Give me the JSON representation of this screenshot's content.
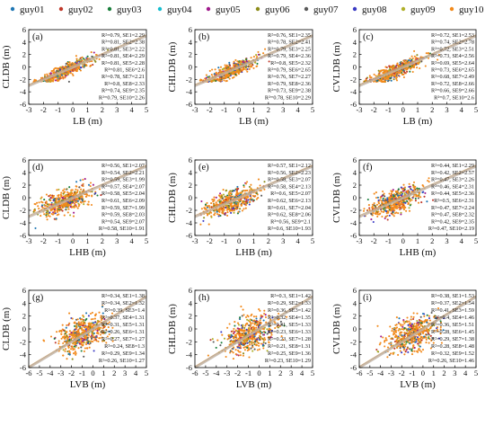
{
  "legend": [
    {
      "name": "guy01",
      "color": "#1f77b4"
    },
    {
      "name": "guy02",
      "color": "#c0392b"
    },
    {
      "name": "guy03",
      "color": "#1a7f3c"
    },
    {
      "name": "guy04",
      "color": "#17becf"
    },
    {
      "name": "guy05",
      "color": "#a01a8c"
    },
    {
      "name": "guy06",
      "color": "#8c8c1a"
    },
    {
      "name": "guy07",
      "color": "#5a5a5a"
    },
    {
      "name": "guy08",
      "color": "#3b3bc4"
    },
    {
      "name": "guy09",
      "color": "#b0b02a"
    },
    {
      "name": "guy10",
      "color": "#f28a1c"
    }
  ],
  "chart_data": [
    {
      "type": "scatter",
      "panel": "(a)",
      "xlabel": "LB (m)",
      "ylabel": "CLDB (m)",
      "xlim": [
        -3,
        5
      ],
      "ylim": [
        -6,
        6
      ],
      "xticks": [
        -3,
        -2,
        -1,
        0,
        1,
        2,
        3,
        4,
        5
      ],
      "yticks": [
        -6,
        -4,
        -2,
        0,
        2,
        4,
        6
      ],
      "stats": [
        "R²=0.79, SE1=2.29",
        "R²=0.81, SE2=2.38",
        "R²=0.81, SE3=2.22",
        "R²=0.81, SE4=2.29",
        "R²=0.81, SE5=2.28",
        "R²=0.81, SE6=2.6",
        "R²=0.78, SE7=2.21",
        "R²=0.8, SE8=2.33",
        "R²=0.74, SE9=2.35",
        "R²=0.79, SE10=2.26"
      ]
    },
    {
      "type": "scatter",
      "panel": "(b)",
      "xlabel": "LB (m)",
      "ylabel": "CHLDB (m)",
      "xlim": [
        -3,
        5
      ],
      "ylim": [
        -6,
        6
      ],
      "xticks": [
        -3,
        -2,
        -1,
        0,
        1,
        2,
        3,
        4,
        5
      ],
      "yticks": [
        -6,
        -4,
        -2,
        0,
        2,
        4,
        6
      ],
      "stats": [
        "R²=0.76, SE1=2.35",
        "R²=0.78, SE2=2.41",
        "R²=0.79, SE3=2.25",
        "R²=0.79, SE4=2.36",
        "R²=0.8, SE5=2.32",
        "R²=0.79, SE6=2.65",
        "R²=0.76, SE7=2.27",
        "R²=0.79, SE8=2.36",
        "R²=0.73, SE9=2.38",
        "R²=0.78, SE10=2.29"
      ]
    },
    {
      "type": "scatter",
      "panel": "(c)",
      "xlabel": "LB (m)",
      "ylabel": "CVLDB (m)",
      "xlim": [
        -3,
        5
      ],
      "ylim": [
        -6,
        6
      ],
      "xticks": [
        -3,
        -2,
        -1,
        0,
        1,
        2,
        3,
        4,
        5
      ],
      "yticks": [
        -6,
        -4,
        -2,
        0,
        2,
        4,
        6
      ],
      "stats": [
        "R²=0.72, SE1=2.53",
        "R²=0.74, SE2=2.78",
        "R²=0.72, SE3=2.51",
        "R²=0.73, SE4=2.56",
        "R²=0.69, SE5=2.64",
        "R²=0.73, SE6=2.65",
        "R²=0.68, SE7=2.49",
        "R²=0.72, SE8=2.66",
        "R²=0.66, SE9=2.66",
        "R²=0.7, SE10=2.6"
      ]
    },
    {
      "type": "scatter",
      "panel": "(d)",
      "xlabel": "LHB (m)",
      "ylabel": "CLDB (m)",
      "xlim": [
        -3,
        5
      ],
      "ylim": [
        -6,
        6
      ],
      "xticks": [
        -3,
        -2,
        -1,
        0,
        1,
        2,
        3,
        4,
        5
      ],
      "yticks": [
        -6,
        -4,
        -2,
        0,
        2,
        4,
        6
      ],
      "stats": [
        "R²=0.56, SE1=2.07",
        "R²=0.54, SE2=2.21",
        "R²=0.59, SE3=1.99",
        "R²=0.57, SE4=2.07",
        "R²=0.58, SE5=2.04",
        "R²=0.61, SE6=2.09",
        "R²=0.59, SE7=1.99",
        "R²=0.59, SE8=2.03",
        "R²=0.54, SE9=2.07",
        "R²=0.58, SE10=1.91"
      ]
    },
    {
      "type": "scatter",
      "panel": "(e)",
      "xlabel": "LHB (m)",
      "ylabel": "CHLDB (m)",
      "xlim": [
        -3,
        5
      ],
      "ylim": [
        -6,
        6
      ],
      "xticks": [
        -3,
        -2,
        -1,
        0,
        1,
        2,
        3,
        4,
        5
      ],
      "yticks": [
        -6,
        -4,
        -2,
        0,
        2,
        4,
        6
      ],
      "stats": [
        "R²=0.57, SE1=2.12",
        "R²=0.56, SE2=2.23",
        "R²=0.58, SE3=2.07",
        "R²=0.58, SE4=2.13",
        "R²=0.6, SE5=2.07",
        "R²=0.62, SE6=2.13",
        "R²=0.61, SE7=2.04",
        "R²=0.62, SE8=2.06",
        "R²=0.56, SE9=2.1",
        "R²=0.6, SE10=1.93"
      ]
    },
    {
      "type": "scatter",
      "panel": "(f)",
      "xlabel": "LHB (m)",
      "ylabel": "CVLDB (m)",
      "xlim": [
        -3,
        5
      ],
      "ylim": [
        -6,
        6
      ],
      "xticks": [
        -3,
        -2,
        -1,
        0,
        1,
        2,
        3,
        4,
        5
      ],
      "yticks": [
        -6,
        -4,
        -2,
        0,
        2,
        4,
        6
      ],
      "stats": [
        "R²=0.44, SE1=2.29",
        "R²=0.42, SE2=2.57",
        "R²=0.47, SE3=2.26",
        "R²=0.46, SE4=2.31",
        "R²=0.44, SE5=2.36",
        "R²=0.5, SE6=2.31",
        "R²=0.47, SE7=2.24",
        "R²=0.47, SE8=2.32",
        "R²=0.42, SE9=2.35",
        "R²=0.47, SE10=2.19"
      ]
    },
    {
      "type": "scatter",
      "panel": "(g)",
      "xlabel": "LVB (m)",
      "ylabel": "CLDB (m)",
      "xlim": [
        -6,
        5
      ],
      "ylim": [
        -6,
        6
      ],
      "xticks": [
        -6,
        -5,
        -4,
        -3,
        -2,
        -1,
        0,
        1,
        2,
        3,
        4,
        5
      ],
      "yticks": [
        -6,
        -4,
        -2,
        0,
        2,
        4,
        6
      ],
      "stats": [
        "R²=0.34, SE1=1.38",
        "R²=0.34, SE2=1.32",
        "R²=0.39, SE3=1.4",
        "R²=0.37, SE4=1.31",
        "R²=0.31, SE5=1.31",
        "R²=0.26, SE6=1.31",
        "R²=0.27, SE7=1.27",
        "R²=0.24, SE8=1.3",
        "R²=0.29, SE9=1.34",
        "R²=0.26, SE10=1.27"
      ]
    },
    {
      "type": "scatter",
      "panel": "(h)",
      "xlabel": "LVB (m)",
      "ylabel": "CHLDB (m)",
      "xlim": [
        -6,
        5
      ],
      "ylim": [
        -6,
        6
      ],
      "xticks": [
        -6,
        -5,
        -4,
        -3,
        -2,
        -1,
        0,
        1,
        2,
        3,
        4,
        5
      ],
      "yticks": [
        -6,
        -4,
        -2,
        0,
        2,
        4,
        6
      ],
      "stats": [
        "R²=0.3, SE1=1.42",
        "R²=0.29, SE2=1.33",
        "R²=0.36, SE3=1.42",
        "R²=0.32, SE4=1.35",
        "R²=0.31, SE5=1.33",
        "R²=0.23, SE6=1.33",
        "R²=0.23, SE7=1.28",
        "R²=0.21, SE8=1.31",
        "R²=0.25, SE9=1.36",
        "R²=0.23, SE10=1.29"
      ]
    },
    {
      "type": "scatter",
      "panel": "(i)",
      "xlabel": "LVB (m)",
      "ylabel": "CVLDB (m)",
      "xlim": [
        -6,
        5
      ],
      "ylim": [
        -6,
        6
      ],
      "xticks": [
        -6,
        -5,
        -4,
        -3,
        -2,
        -1,
        0,
        1,
        2,
        3,
        4,
        5
      ],
      "yticks": [
        -6,
        -4,
        -2,
        0,
        2,
        4,
        6
      ],
      "stats": [
        "R²=0.38, SE1=1.53",
        "R²=0.37, SE2=1.54",
        "R²=0.41, SE3=1.59",
        "R²=0.4, SE4=1.46",
        "R²=0.36, SE5=1.51",
        "R²=0.28, SE6=1.45",
        "R²=0.29, SE7=1.38",
        "R²=0.28, SE8=1.48",
        "R²=0.32, SE9=1.52",
        "R²=0.26, SE10=1.46"
      ]
    }
  ]
}
